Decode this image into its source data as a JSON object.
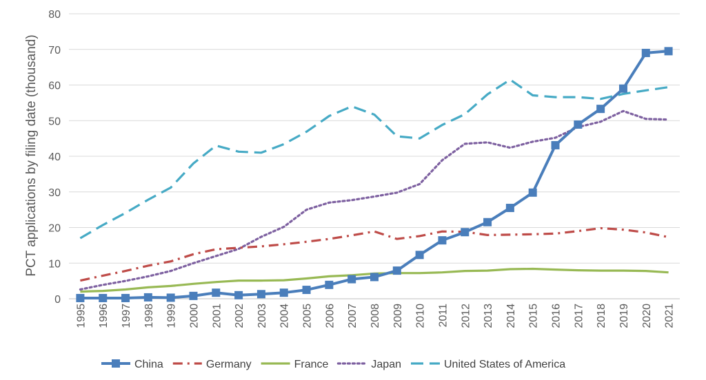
{
  "chart_data": {
    "type": "line",
    "title": "",
    "xlabel": "",
    "ylabel": "PCT applications by filing date (thousand)",
    "ylim": [
      0,
      80
    ],
    "yticks": [
      0,
      10,
      20,
      30,
      40,
      50,
      60,
      70,
      80
    ],
    "grid": true,
    "legend_position": "bottom",
    "categories": [
      "1995",
      "1996",
      "1997",
      "1998",
      "1999",
      "2000",
      "2001",
      "2002",
      "2003",
      "2004",
      "2005",
      "2006",
      "2007",
      "2008",
      "2009",
      "2010",
      "2011",
      "2012",
      "2013",
      "2014",
      "2015",
      "2016",
      "2017",
      "2018",
      "2019",
      "2020",
      "2021"
    ],
    "series": [
      {
        "name": "China",
        "color": "#4a7ebb",
        "dash": "solid",
        "marker": "square",
        "values": [
          0.2,
          0.2,
          0.2,
          0.4,
          0.3,
          0.8,
          1.7,
          1.0,
          1.3,
          1.7,
          2.5,
          3.9,
          5.5,
          6.1,
          7.9,
          12.3,
          16.4,
          18.7,
          21.5,
          25.5,
          29.8,
          43.1,
          48.9,
          53.3,
          59.0,
          69.0,
          69.5
        ]
      },
      {
        "name": "Germany",
        "color": "#be4b48",
        "dash": "dash-dot",
        "marker": "none",
        "values": [
          5.1,
          6.5,
          7.8,
          9.3,
          10.5,
          12.5,
          13.9,
          14.3,
          14.7,
          15.3,
          16.0,
          16.8,
          17.8,
          18.9,
          16.8,
          17.6,
          18.9,
          18.8,
          17.9,
          18.0,
          18.1,
          18.3,
          19.0,
          19.8,
          19.4,
          18.6,
          17.3
        ]
      },
      {
        "name": "France",
        "color": "#98b954",
        "dash": "solid",
        "marker": "none",
        "values": [
          2.0,
          2.2,
          2.6,
          3.2,
          3.6,
          4.2,
          4.7,
          5.1,
          5.1,
          5.2,
          5.7,
          6.3,
          6.6,
          7.1,
          7.2,
          7.2,
          7.4,
          7.8,
          7.9,
          8.3,
          8.4,
          8.2,
          8.0,
          7.9,
          7.9,
          7.8,
          7.4
        ]
      },
      {
        "name": "Japan",
        "color": "#7d60a0",
        "dash": "dotted",
        "marker": "none",
        "values": [
          2.6,
          3.9,
          5.0,
          6.3,
          7.8,
          10.0,
          12.0,
          14.0,
          17.4,
          20.2,
          25.0,
          27.0,
          27.7,
          28.7,
          29.8,
          32.2,
          38.9,
          43.5,
          43.9,
          42.4,
          44.1,
          45.2,
          48.2,
          49.7,
          52.7,
          50.5,
          50.3
        ]
      },
      {
        "name": "United States of America",
        "color": "#46aac5",
        "dash": "long-dash",
        "marker": "none",
        "values": [
          17.0,
          20.7,
          24.1,
          27.8,
          31.2,
          38.0,
          43.0,
          41.3,
          41.0,
          43.4,
          46.9,
          51.3,
          54.0,
          51.7,
          45.6,
          45.0,
          48.8,
          51.8,
          57.4,
          61.5,
          57.1,
          56.6,
          56.6,
          56.1,
          57.5,
          58.5,
          59.4
        ]
      }
    ]
  }
}
